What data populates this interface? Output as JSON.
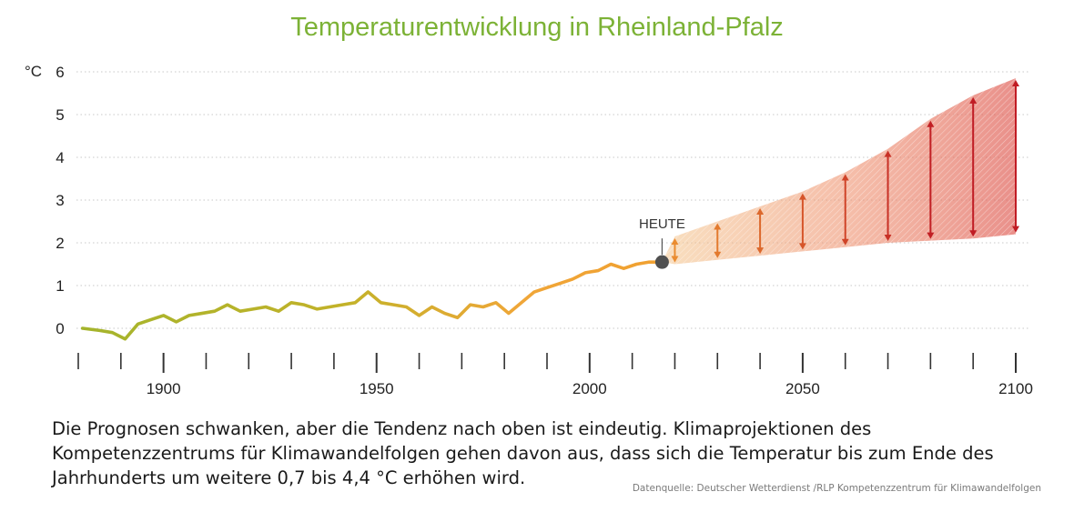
{
  "title": "Temperaturentwicklung in Rheinland-Pfalz",
  "caption": "Die Prognosen schwanken, aber die Tendenz nach oben ist eindeutig. Klimaprojektionen des Kompetenzzentrums für Klimawandelfolgen gehen davon aus, dass sich die Temperatur bis zum Ende des Jahrhunderts um weitere 0,7 bis 4,4 °C erhöhen wird.",
  "source": "Datenquelle: Deutscher Wetterdienst /RLP Kompetenzzentrum für Klimawandelfolgen",
  "colors": {
    "title": "#7cb236",
    "line_early": "#a8b52a",
    "line_late": "#f0a030",
    "range_low": "#f2b06a",
    "range_high": "#d63a36",
    "arrow_low": "#e8862a",
    "arrow_high": "#c61f24",
    "today_marker": "#505050"
  },
  "chart_data": {
    "type": "line",
    "title": "Temperaturentwicklung in Rheinland-Pfalz",
    "ylabel": "°C",
    "xlim": [
      1880,
      2100
    ],
    "ylim": [
      -0.3,
      6
    ],
    "grid": true,
    "x_ticks": [
      "1900",
      "1950",
      "2000",
      "2050",
      "2100"
    ],
    "y_ticks": [
      "0",
      "1",
      "2",
      "3",
      "4",
      "5",
      "6"
    ],
    "annotation": "HEUTE",
    "today": {
      "x": 2017,
      "y": 1.55
    },
    "series": [
      {
        "x": [
          1881,
          1885,
          1888,
          1891,
          1894,
          1897,
          1900,
          1903,
          1906,
          1909,
          1912,
          1915,
          1918,
          1921,
          1924,
          1927,
          1930,
          1933,
          1936,
          1939,
          1942,
          1945,
          1948,
          1951,
          1954,
          1957,
          1960,
          1963,
          1966,
          1969,
          1972,
          1975,
          1978,
          1981,
          1984,
          1987,
          1990,
          1993,
          1996,
          1999,
          2002,
          2005,
          2008,
          2011,
          2014,
          2017
        ],
        "values": [
          0.0,
          -0.05,
          -0.1,
          -0.25,
          0.1,
          0.2,
          0.3,
          0.15,
          0.3,
          0.35,
          0.4,
          0.55,
          0.4,
          0.45,
          0.5,
          0.4,
          0.6,
          0.55,
          0.45,
          0.5,
          0.55,
          0.6,
          0.85,
          0.6,
          0.55,
          0.5,
          0.3,
          0.5,
          0.35,
          0.25,
          0.55,
          0.5,
          0.6,
          0.35,
          0.6,
          0.85,
          0.95,
          1.05,
          1.15,
          1.3,
          1.35,
          1.5,
          1.4,
          1.5,
          1.55,
          1.55
        ]
      }
    ],
    "projection_range": {
      "x": [
        2017,
        2020,
        2030,
        2040,
        2050,
        2060,
        2070,
        2080,
        2090,
        2100
      ],
      "low": [
        1.55,
        1.5,
        1.6,
        1.7,
        1.8,
        1.9,
        2.0,
        2.05,
        2.1,
        2.2
      ],
      "high": [
        1.55,
        2.15,
        2.5,
        2.85,
        3.2,
        3.65,
        4.2,
        4.9,
        5.45,
        5.85
      ]
    }
  }
}
